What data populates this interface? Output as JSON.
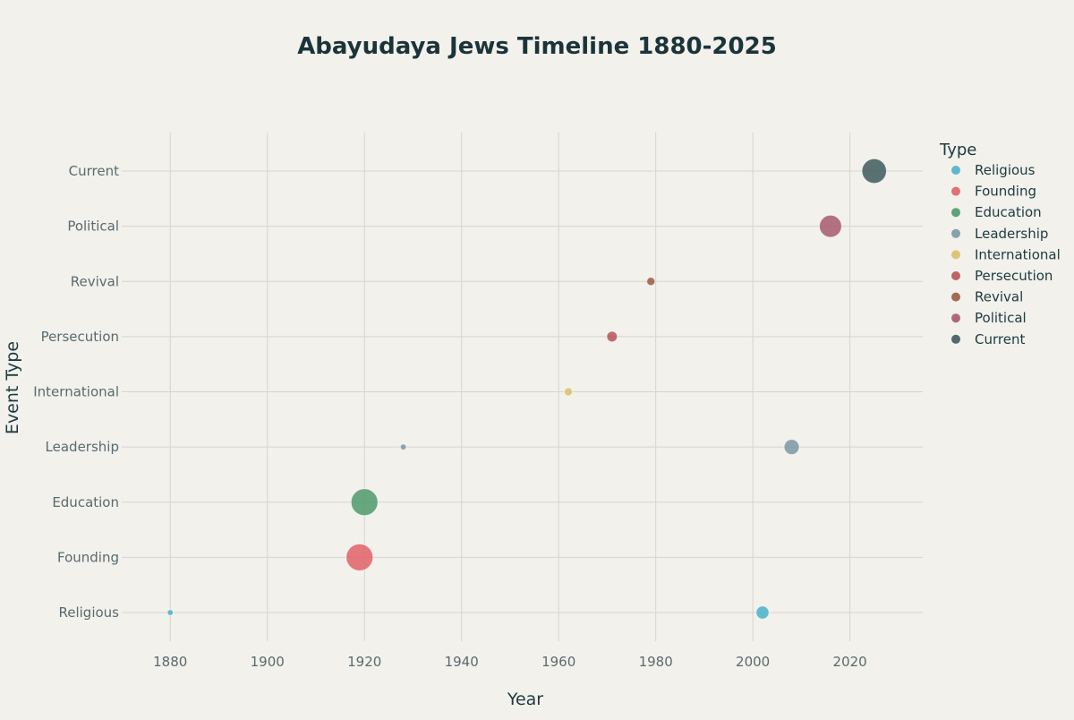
{
  "chart_data": {
    "type": "scatter",
    "title": "Abayudaya Jews Timeline 1880-2025",
    "xlabel": "Year",
    "ylabel": "Event Type",
    "xlim": [
      1870,
      2035
    ],
    "xticks": [
      1880,
      1900,
      1920,
      1940,
      1960,
      1980,
      2000,
      2020
    ],
    "categories": [
      "Religious",
      "Founding",
      "Education",
      "Leadership",
      "International",
      "Persecution",
      "Revival",
      "Political",
      "Current"
    ],
    "grid": true,
    "legend": {
      "title": "Type",
      "placement": "right"
    },
    "series": [
      {
        "name": "Religious",
        "color": "#4ab3c9",
        "points": [
          {
            "x": 1880,
            "size": 1
          },
          {
            "x": 2002,
            "size": 4
          }
        ]
      },
      {
        "name": "Founding",
        "color": "#e06268",
        "points": [
          {
            "x": 1919,
            "size": 10
          }
        ]
      },
      {
        "name": "Education",
        "color": "#4f9a6c",
        "points": [
          {
            "x": 1920,
            "size": 10
          }
        ]
      },
      {
        "name": "Leadership",
        "color": "#7a98a3",
        "points": [
          {
            "x": 1928,
            "size": 1
          },
          {
            "x": 2008,
            "size": 5
          }
        ]
      },
      {
        "name": "International",
        "color": "#dcbf6c",
        "points": [
          {
            "x": 1962,
            "size": 2
          }
        ]
      },
      {
        "name": "Persecution",
        "color": "#b7545a",
        "points": [
          {
            "x": 1971,
            "size": 3
          }
        ]
      },
      {
        "name": "Revival",
        "color": "#9b5b43",
        "points": [
          {
            "x": 1979,
            "size": 2
          }
        ]
      },
      {
        "name": "Political",
        "color": "#a65a6f",
        "points": [
          {
            "x": 2016,
            "size": 8
          }
        ]
      },
      {
        "name": "Current",
        "color": "#3f5a5e",
        "points": [
          {
            "x": 2025,
            "size": 9
          }
        ]
      }
    ]
  }
}
